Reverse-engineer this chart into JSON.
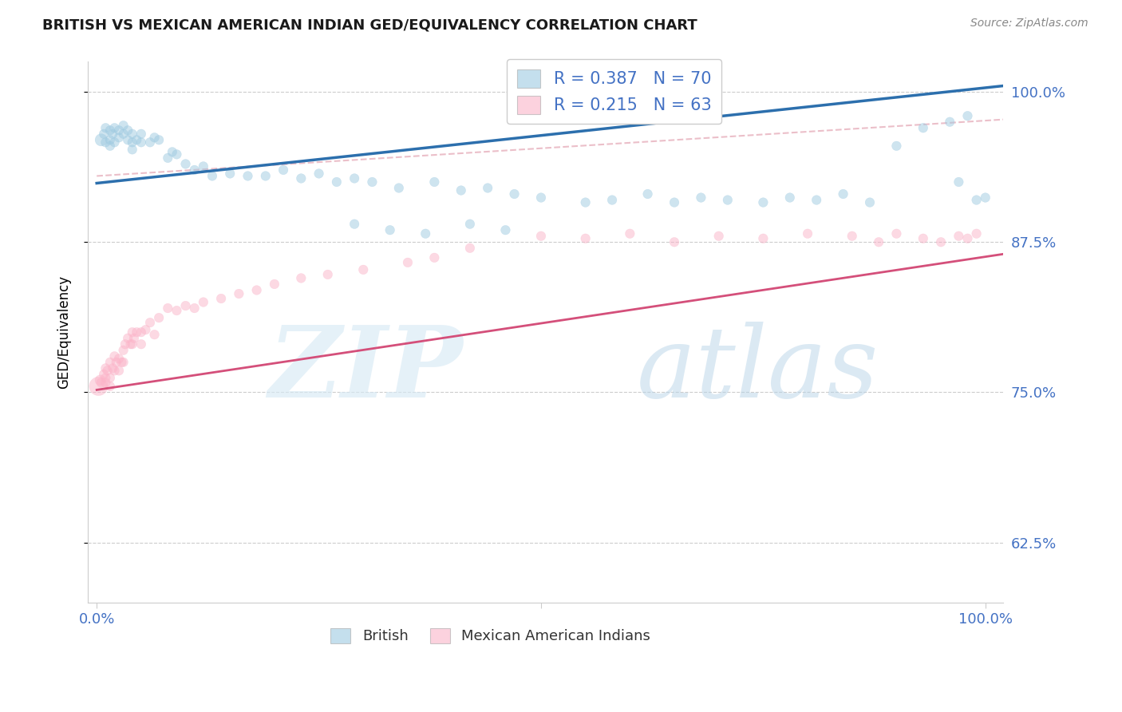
{
  "title": "BRITISH VS MEXICAN AMERICAN INDIAN GED/EQUIVALENCY CORRELATION CHART",
  "source": "Source: ZipAtlas.com",
  "ylabel": "GED/Equivalency",
  "y_ticks": [
    0.625,
    0.75,
    0.875,
    1.0
  ],
  "y_tick_labels": [
    "62.5%",
    "75.0%",
    "87.5%",
    "100.0%"
  ],
  "blue_R": 0.387,
  "blue_N": 70,
  "pink_R": 0.215,
  "pink_N": 63,
  "blue_color": "#9ecae1",
  "pink_color": "#fbb4c9",
  "blue_line_color": "#2c6fad",
  "pink_line_color": "#d44f7a",
  "dashed_line_color": "#e8b4c0",
  "legend_blue_label": "British",
  "legend_pink_label": "Mexican American Indians",
  "blue_line_x": [
    0.0,
    1.02
  ],
  "blue_line_y": [
    0.924,
    1.005
  ],
  "pink_line_x": [
    0.0,
    1.02
  ],
  "pink_line_y": [
    0.752,
    0.865
  ],
  "dashed_line_x": [
    0.0,
    1.02
  ],
  "dashed_line_y": [
    0.93,
    0.977
  ],
  "ylim": [
    0.575,
    1.025
  ],
  "xlim": [
    -0.01,
    1.02
  ],
  "blue_x": [
    0.005,
    0.008,
    0.01,
    0.01,
    0.015,
    0.015,
    0.015,
    0.018,
    0.02,
    0.02,
    0.025,
    0.025,
    0.03,
    0.03,
    0.035,
    0.035,
    0.04,
    0.04,
    0.04,
    0.045,
    0.05,
    0.05,
    0.06,
    0.065,
    0.07,
    0.08,
    0.085,
    0.09,
    0.1,
    0.11,
    0.12,
    0.13,
    0.15,
    0.17,
    0.19,
    0.21,
    0.23,
    0.25,
    0.27,
    0.29,
    0.31,
    0.34,
    0.38,
    0.41,
    0.44,
    0.47,
    0.5,
    0.55,
    0.58,
    0.62,
    0.65,
    0.68,
    0.71,
    0.75,
    0.78,
    0.81,
    0.84,
    0.87,
    0.9,
    0.93,
    0.96,
    0.97,
    0.98,
    0.99,
    1.0,
    0.29,
    0.33,
    0.37,
    0.42,
    0.46
  ],
  "blue_y": [
    0.96,
    0.965,
    0.97,
    0.958,
    0.968,
    0.96,
    0.955,
    0.965,
    0.97,
    0.958,
    0.968,
    0.962,
    0.972,
    0.965,
    0.968,
    0.96,
    0.965,
    0.958,
    0.952,
    0.96,
    0.965,
    0.958,
    0.958,
    0.962,
    0.96,
    0.945,
    0.95,
    0.948,
    0.94,
    0.935,
    0.938,
    0.93,
    0.932,
    0.93,
    0.93,
    0.935,
    0.928,
    0.932,
    0.925,
    0.928,
    0.925,
    0.92,
    0.925,
    0.918,
    0.92,
    0.915,
    0.912,
    0.908,
    0.91,
    0.915,
    0.908,
    0.912,
    0.91,
    0.908,
    0.912,
    0.91,
    0.915,
    0.908,
    0.955,
    0.97,
    0.975,
    0.925,
    0.98,
    0.91,
    0.912,
    0.89,
    0.885,
    0.882,
    0.89,
    0.885
  ],
  "blue_sizes": [
    120,
    70,
    70,
    70,
    70,
    70,
    70,
    70,
    70,
    70,
    70,
    70,
    70,
    70,
    70,
    70,
    70,
    70,
    70,
    70,
    70,
    70,
    70,
    70,
    70,
    70,
    70,
    70,
    70,
    70,
    70,
    70,
    70,
    70,
    70,
    70,
    70,
    70,
    70,
    70,
    70,
    70,
    70,
    70,
    70,
    70,
    70,
    70,
    70,
    70,
    70,
    70,
    70,
    70,
    70,
    70,
    70,
    70,
    70,
    70,
    70,
    70,
    70,
    70,
    70,
    70,
    70,
    70,
    70,
    70
  ],
  "pink_x": [
    0.002,
    0.004,
    0.005,
    0.008,
    0.01,
    0.01,
    0.01,
    0.012,
    0.015,
    0.015,
    0.015,
    0.018,
    0.02,
    0.02,
    0.022,
    0.025,
    0.025,
    0.028,
    0.03,
    0.03,
    0.032,
    0.035,
    0.038,
    0.04,
    0.04,
    0.042,
    0.045,
    0.05,
    0.05,
    0.055,
    0.06,
    0.065,
    0.07,
    0.08,
    0.09,
    0.1,
    0.11,
    0.12,
    0.14,
    0.16,
    0.18,
    0.2,
    0.23,
    0.26,
    0.3,
    0.35,
    0.38,
    0.42,
    0.5,
    0.55,
    0.6,
    0.65,
    0.7,
    0.75,
    0.8,
    0.85,
    0.88,
    0.9,
    0.93,
    0.95,
    0.97,
    0.98,
    0.99
  ],
  "pink_y": [
    0.755,
    0.76,
    0.758,
    0.765,
    0.762,
    0.77,
    0.758,
    0.768,
    0.775,
    0.762,
    0.755,
    0.77,
    0.78,
    0.768,
    0.775,
    0.778,
    0.768,
    0.775,
    0.785,
    0.775,
    0.79,
    0.795,
    0.79,
    0.8,
    0.79,
    0.795,
    0.8,
    0.8,
    0.79,
    0.802,
    0.808,
    0.798,
    0.812,
    0.82,
    0.818,
    0.822,
    0.82,
    0.825,
    0.828,
    0.832,
    0.835,
    0.84,
    0.845,
    0.848,
    0.852,
    0.858,
    0.862,
    0.87,
    0.88,
    0.878,
    0.882,
    0.875,
    0.88,
    0.878,
    0.882,
    0.88,
    0.875,
    0.882,
    0.878,
    0.875,
    0.88,
    0.878,
    0.882
  ],
  "pink_sizes": [
    280,
    90,
    70,
    70,
    70,
    70,
    70,
    70,
    70,
    70,
    70,
    70,
    70,
    70,
    70,
    70,
    70,
    70,
    70,
    70,
    70,
    70,
    70,
    70,
    70,
    70,
    70,
    70,
    70,
    70,
    70,
    70,
    70,
    70,
    70,
    70,
    70,
    70,
    70,
    70,
    70,
    70,
    70,
    70,
    70,
    70,
    70,
    70,
    70,
    70,
    70,
    70,
    70,
    70,
    70,
    70,
    70,
    70,
    70,
    70,
    70,
    70,
    70
  ]
}
